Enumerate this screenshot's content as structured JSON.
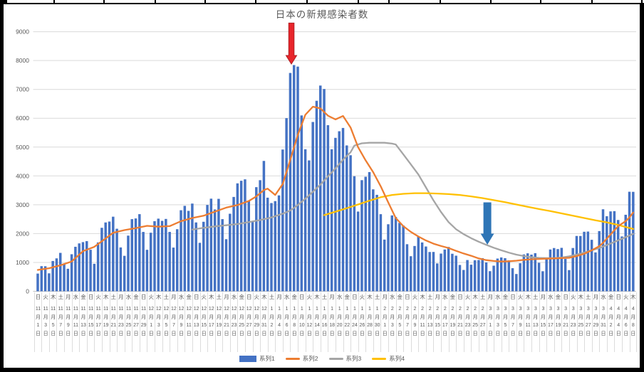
{
  "title": "日本の新規感染者数",
  "frame": {
    "top_ticks_x": [
      75,
      145,
      217,
      287,
      358,
      430,
      502,
      545,
      617,
      688,
      758,
      830,
      900
    ]
  },
  "yaxis": {
    "ticks": [
      0,
      1000,
      2000,
      3000,
      4000,
      5000,
      6000,
      7000,
      8000,
      9000
    ]
  },
  "xaxis": {
    "labels": [
      [
        "日",
        "11",
        "1"
      ],
      [
        "火",
        "11",
        "3"
      ],
      [
        "木",
        "11",
        "5"
      ],
      [
        "土",
        "11",
        "7"
      ],
      [
        "月",
        "11",
        "9"
      ],
      [
        "水",
        "11",
        "11"
      ],
      [
        "金",
        "11",
        "13"
      ],
      [
        "日",
        "11",
        "15"
      ],
      [
        "火",
        "11",
        "17"
      ],
      [
        "木",
        "11",
        "19"
      ],
      [
        "土",
        "11",
        "21"
      ],
      [
        "月",
        "11",
        "23"
      ],
      [
        "水",
        "11",
        "25"
      ],
      [
        "金",
        "11",
        "27"
      ],
      [
        "日",
        "11",
        "29"
      ],
      [
        "火",
        "12",
        "1"
      ],
      [
        "木",
        "12",
        "3"
      ],
      [
        "土",
        "12",
        "5"
      ],
      [
        "月",
        "12",
        "7"
      ],
      [
        "水",
        "12",
        "9"
      ],
      [
        "金",
        "12",
        "11"
      ],
      [
        "日",
        "12",
        "13"
      ],
      [
        "火",
        "12",
        "15"
      ],
      [
        "木",
        "12",
        "17"
      ],
      [
        "土",
        "12",
        "19"
      ],
      [
        "月",
        "12",
        "21"
      ],
      [
        "水",
        "12",
        "23"
      ],
      [
        "金",
        "12",
        "25"
      ],
      [
        "日",
        "12",
        "27"
      ],
      [
        "火",
        "12",
        "29"
      ],
      [
        "木",
        "12",
        "31"
      ],
      [
        "土",
        "1",
        "2"
      ],
      [
        "月",
        "1",
        "4"
      ],
      [
        "水",
        "1",
        "6"
      ],
      [
        "金",
        "1",
        "8"
      ],
      [
        "日",
        "1",
        "10"
      ],
      [
        "火",
        "1",
        "12"
      ],
      [
        "木",
        "1",
        "14"
      ],
      [
        "土",
        "1",
        "16"
      ],
      [
        "月",
        "1",
        "18"
      ],
      [
        "水",
        "1",
        "20"
      ],
      [
        "金",
        "1",
        "22"
      ],
      [
        "日",
        "1",
        "24"
      ],
      [
        "火",
        "1",
        "26"
      ],
      [
        "木",
        "1",
        "28"
      ],
      [
        "土",
        "1",
        "30"
      ],
      [
        "月",
        "2",
        "1"
      ],
      [
        "水",
        "2",
        "3"
      ],
      [
        "金",
        "2",
        "5"
      ],
      [
        "日",
        "2",
        "7"
      ],
      [
        "火",
        "2",
        "9"
      ],
      [
        "木",
        "2",
        "11"
      ],
      [
        "土",
        "2",
        "13"
      ],
      [
        "月",
        "2",
        "15"
      ],
      [
        "水",
        "2",
        "17"
      ],
      [
        "金",
        "2",
        "19"
      ],
      [
        "日",
        "2",
        "21"
      ],
      [
        "火",
        "2",
        "23"
      ],
      [
        "木",
        "2",
        "25"
      ],
      [
        "土",
        "2",
        "27"
      ],
      [
        "月",
        "3",
        "1"
      ],
      [
        "水",
        "3",
        "3"
      ],
      [
        "金",
        "3",
        "5"
      ],
      [
        "日",
        "3",
        "7"
      ],
      [
        "火",
        "3",
        "9"
      ],
      [
        "木",
        "3",
        "11"
      ],
      [
        "土",
        "3",
        "13"
      ],
      [
        "月",
        "3",
        "15"
      ],
      [
        "水",
        "3",
        "17"
      ],
      [
        "金",
        "3",
        "19"
      ],
      [
        "日",
        "3",
        "21"
      ],
      [
        "火",
        "3",
        "23"
      ],
      [
        "木",
        "3",
        "25"
      ],
      [
        "土",
        "3",
        "27"
      ],
      [
        "月",
        "3",
        "29"
      ],
      [
        "水",
        "3",
        "31"
      ],
      [
        "金",
        "4",
        "2"
      ],
      [
        "日",
        "4",
        "4"
      ],
      [
        "火",
        "4",
        "6"
      ],
      [
        "木",
        "4",
        "8"
      ]
    ]
  },
  "legend": [
    {
      "label": "系列1",
      "type": "bar",
      "color": "#4472C4"
    },
    {
      "label": "系列2",
      "type": "line",
      "color": "#ED7D31"
    },
    {
      "label": "系列3",
      "type": "line",
      "color": "#A5A5A5"
    },
    {
      "label": "系列4",
      "type": "line",
      "color": "#FFC000"
    }
  ],
  "chart_data": {
    "type": "bar",
    "title": "日本の新規感染者数",
    "x_start_label": "11月1日",
    "x_end_label": "4月8日",
    "x_step_days": 1,
    "ylim": [
      0,
      9000
    ],
    "grid": true,
    "legend_position": "bottom",
    "bar_series": {
      "name": "系列1",
      "color": "#4472C4",
      "values": [
        614,
        871,
        868,
        622,
        1050,
        1141,
        1331,
        952,
        780,
        1284,
        1543,
        1660,
        1704,
        1738,
        1440,
        953,
        1693,
        2201,
        2386,
        2418,
        2586,
        2168,
        1520,
        1229,
        1930,
        2501,
        2525,
        2674,
        2058,
        1438,
        2030,
        2430,
        2518,
        2442,
        2508,
        2058,
        1515,
        2152,
        2810,
        2962,
        2788,
        3041,
        2387,
        1680,
        2410,
        2994,
        3211,
        2837,
        3205,
        2501,
        1806,
        2688,
        3271,
        3742,
        3832,
        3881,
        3127,
        2403,
        3610,
        3852,
        4520,
        3246,
        3059,
        3127,
        3325,
        4915,
        6004,
        7570,
        7844,
        7790,
        6097,
        4925,
        4538,
        5870,
        6605,
        7133,
        7014,
        5759,
        4925,
        5320,
        5549,
        5663,
        5057,
        4717,
        3990,
        2764,
        3853,
        3971,
        4133,
        3534,
        3344,
        2673,
        1792,
        2324,
        2631,
        2577,
        2372,
        2279,
        1632,
        1216,
        1570,
        1887,
        1693,
        1552,
        1362,
        1364,
        965,
        1307,
        1448,
        1536,
        1301,
        1234,
        912,
        739,
        1083,
        921,
        1076,
        1083,
        1148,
        999,
        697,
        888,
        1134,
        1173,
        1148,
        1073,
        800,
        599,
        972,
        1277,
        1316,
        1271,
        1320,
        988,
        695,
        1133,
        1449,
        1499,
        1463,
        1506,
        1121,
        734,
        1500,
        1918,
        1917,
        2064,
        2071,
        1785,
        1348,
        2087,
        2843,
        2602,
        2770,
        2779,
        2472,
        1901,
        2653,
        3451,
        3448
      ]
    },
    "line_series": [
      {
        "name": "系列3",
        "color": "#A5A5A5",
        "points": [
          [
            41,
            2140
          ],
          [
            44,
            2200
          ],
          [
            47,
            2250
          ],
          [
            50,
            2290
          ],
          [
            53,
            2330
          ],
          [
            56,
            2400
          ],
          [
            59,
            2470
          ],
          [
            62,
            2560
          ],
          [
            65,
            2690
          ],
          [
            67,
            2800
          ],
          [
            69,
            2990
          ],
          [
            71,
            3210
          ],
          [
            73,
            3450
          ],
          [
            75,
            3700
          ],
          [
            77,
            3980
          ],
          [
            79,
            4260
          ],
          [
            81,
            4560
          ],
          [
            83,
            4820
          ],
          [
            84,
            5050
          ],
          [
            86,
            5130
          ],
          [
            88,
            5150
          ],
          [
            90,
            5150
          ],
          [
            92,
            5150
          ],
          [
            94,
            5120
          ],
          [
            95,
            5090
          ],
          [
            97,
            4750
          ],
          [
            99,
            4400
          ],
          [
            101,
            4050
          ],
          [
            103,
            3600
          ],
          [
            105,
            3150
          ],
          [
            107,
            2750
          ],
          [
            109,
            2400
          ],
          [
            111,
            2150
          ],
          [
            113,
            1980
          ],
          [
            115,
            1840
          ],
          [
            117,
            1720
          ],
          [
            119,
            1610
          ],
          [
            121,
            1510
          ],
          [
            123,
            1420
          ],
          [
            125,
            1340
          ],
          [
            127,
            1270
          ],
          [
            129,
            1220
          ],
          [
            131,
            1180
          ],
          [
            133,
            1160
          ],
          [
            135,
            1150
          ],
          [
            137,
            1150
          ],
          [
            139,
            1170
          ],
          [
            141,
            1210
          ],
          [
            143,
            1270
          ],
          [
            145,
            1340
          ],
          [
            147,
            1420
          ],
          [
            149,
            1500
          ],
          [
            151,
            1600
          ],
          [
            153,
            1710
          ],
          [
            155,
            1820
          ],
          [
            157,
            1930
          ],
          [
            158,
            1990
          ]
        ]
      },
      {
        "name": "系列4",
        "color": "#FFC000",
        "points": [
          [
            76,
            2640
          ],
          [
            79,
            2760
          ],
          [
            82,
            2880
          ],
          [
            85,
            3010
          ],
          [
            88,
            3140
          ],
          [
            91,
            3260
          ],
          [
            94,
            3340
          ],
          [
            97,
            3380
          ],
          [
            100,
            3400
          ],
          [
            103,
            3400
          ],
          [
            106,
            3390
          ],
          [
            109,
            3370
          ],
          [
            112,
            3340
          ],
          [
            115,
            3290
          ],
          [
            118,
            3230
          ],
          [
            121,
            3160
          ],
          [
            124,
            3090
          ],
          [
            127,
            3010
          ],
          [
            130,
            2930
          ],
          [
            133,
            2850
          ],
          [
            136,
            2780
          ],
          [
            139,
            2700
          ],
          [
            142,
            2620
          ],
          [
            145,
            2540
          ],
          [
            148,
            2460
          ],
          [
            151,
            2390
          ],
          [
            154,
            2300
          ],
          [
            156,
            2230
          ],
          [
            158,
            2160
          ]
        ]
      },
      {
        "name": "系列2",
        "color": "#ED7D31",
        "points": [
          [
            0,
            740
          ],
          [
            3,
            800
          ],
          [
            6,
            900
          ],
          [
            9,
            1030
          ],
          [
            12,
            1390
          ],
          [
            15,
            1540
          ],
          [
            18,
            1830
          ],
          [
            20,
            2030
          ],
          [
            23,
            2120
          ],
          [
            26,
            2190
          ],
          [
            29,
            2270
          ],
          [
            32,
            2240
          ],
          [
            35,
            2260
          ],
          [
            38,
            2430
          ],
          [
            41,
            2540
          ],
          [
            44,
            2620
          ],
          [
            47,
            2760
          ],
          [
            50,
            2900
          ],
          [
            53,
            2990
          ],
          [
            56,
            3130
          ],
          [
            58,
            3290
          ],
          [
            60,
            3510
          ],
          [
            61,
            3560
          ],
          [
            63,
            3340
          ],
          [
            65,
            3720
          ],
          [
            67,
            4550
          ],
          [
            69,
            5420
          ],
          [
            71,
            6120
          ],
          [
            73,
            6400
          ],
          [
            75,
            6340
          ],
          [
            77,
            6090
          ],
          [
            79,
            5960
          ],
          [
            81,
            6080
          ],
          [
            83,
            5680
          ],
          [
            85,
            5000
          ],
          [
            87,
            4540
          ],
          [
            89,
            4130
          ],
          [
            91,
            3640
          ],
          [
            93,
            3080
          ],
          [
            95,
            2540
          ],
          [
            97,
            2260
          ],
          [
            99,
            2060
          ],
          [
            101,
            1900
          ],
          [
            103,
            1760
          ],
          [
            105,
            1650
          ],
          [
            107,
            1570
          ],
          [
            109,
            1500
          ],
          [
            111,
            1400
          ],
          [
            113,
            1310
          ],
          [
            115,
            1230
          ],
          [
            117,
            1140
          ],
          [
            119,
            1080
          ],
          [
            121,
            1050
          ],
          [
            123,
            1030
          ],
          [
            125,
            1040
          ],
          [
            127,
            1060
          ],
          [
            129,
            1090
          ],
          [
            131,
            1110
          ],
          [
            133,
            1120
          ],
          [
            135,
            1130
          ],
          [
            137,
            1140
          ],
          [
            139,
            1150
          ],
          [
            141,
            1160
          ],
          [
            143,
            1220
          ],
          [
            145,
            1300
          ],
          [
            147,
            1420
          ],
          [
            149,
            1560
          ],
          [
            150,
            1680
          ],
          [
            152,
            1970
          ],
          [
            154,
            2260
          ],
          [
            156,
            2430
          ],
          [
            157,
            2560
          ],
          [
            158,
            2730
          ]
        ]
      }
    ],
    "annotations": [
      {
        "name": "red-arrow-annotation",
        "shape": "down-arrow",
        "color": "#E8252B",
        "stroke": "#B02024",
        "day": 67.3,
        "from_value": 9300,
        "to_value": 7880,
        "shaft_w": 7.5,
        "head_w": 15,
        "head_h": 12
      },
      {
        "name": "blue-arrow-annotation",
        "shape": "down-arrow",
        "color": "#2E75B6",
        "stroke": "#2E75B6",
        "day": 119.3,
        "from_value": 3070,
        "to_value": 1640,
        "shaft_w": 10,
        "head_w": 17,
        "head_h": 14
      }
    ]
  }
}
